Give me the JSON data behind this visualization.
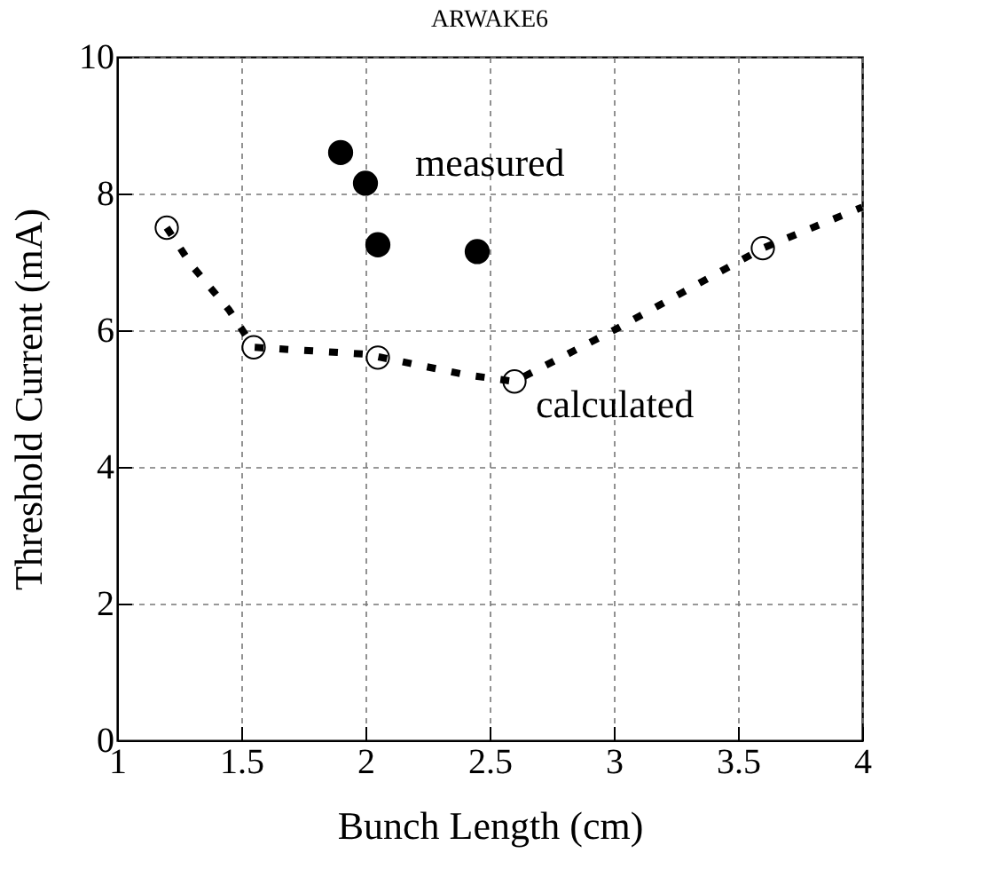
{
  "chart_data": {
    "type": "scatter",
    "title": "ARWAKE6",
    "xlabel": "Bunch Length (cm)",
    "ylabel": "Threshold Current (mA)",
    "xlim": [
      1,
      4
    ],
    "xticks": [
      1,
      1.5,
      2,
      2.5,
      3,
      3.5,
      4
    ],
    "ylim": [
      0,
      10
    ],
    "yticks": [
      0,
      2,
      4,
      6,
      8,
      10
    ],
    "grid": true,
    "legend": false,
    "series": [
      {
        "name": "measured",
        "color": "#000000",
        "marker": "circle",
        "x": [
          1.9,
          2.0,
          2.05,
          2.45
        ],
        "values": [
          8.6,
          8.15,
          7.25,
          7.15
        ]
      },
      {
        "name": "calculated",
        "type": "line",
        "color": "#000000",
        "line_style": "dashed",
        "x": [
          1.2,
          1.3,
          1.45,
          1.55,
          2.0,
          2.4,
          2.6,
          3.0,
          3.6,
          4.0
        ],
        "values": [
          7.5,
          6.95,
          6.3,
          5.75,
          5.65,
          5.35,
          5.25,
          6.0,
          7.2,
          7.8
        ]
      },
      {
        "color": "#000000",
        "marker": "circle",
        "x": [
          1.2,
          1.55,
          2.05,
          2.6,
          3.6
        ],
        "values": [
          7.5,
          5.75,
          5.6,
          5.25,
          7.2
        ]
      }
    ]
  }
}
